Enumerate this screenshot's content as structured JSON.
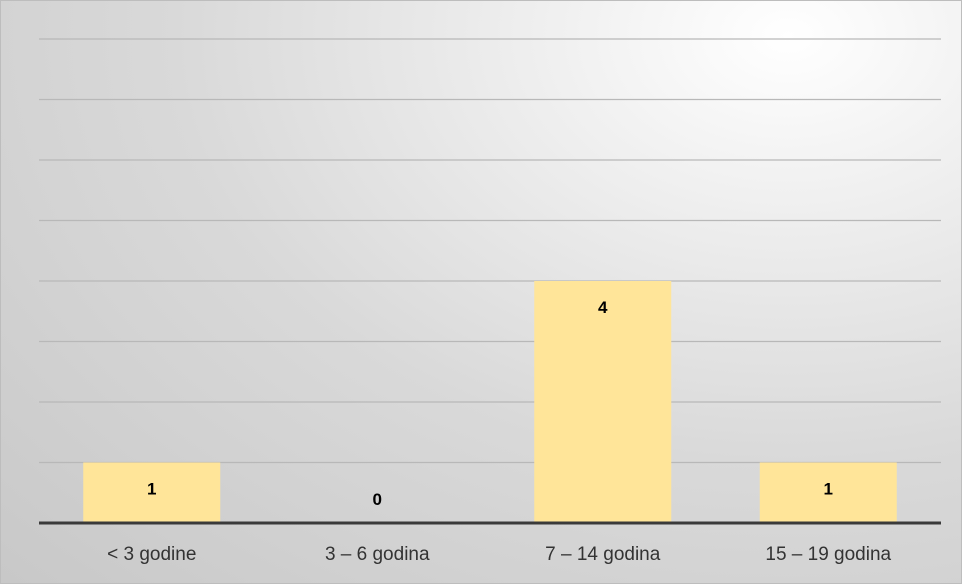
{
  "chart_data": {
    "type": "bar",
    "categories": [
      "< 3 godine",
      "3 – 6 godina",
      "7 – 14 godina",
      "15 – 19 godina"
    ],
    "values": [
      1,
      0,
      4,
      1
    ],
    "data_labels": [
      "1",
      "0",
      "4",
      "1"
    ],
    "ylim": [
      0,
      8
    ],
    "grid": true,
    "legend": "none",
    "title": "",
    "xlabel": "",
    "ylabel": ""
  },
  "colors": {
    "bar": "#ffe599",
    "gridline": "#b8b8b8",
    "axis": "#3a3a3a"
  }
}
